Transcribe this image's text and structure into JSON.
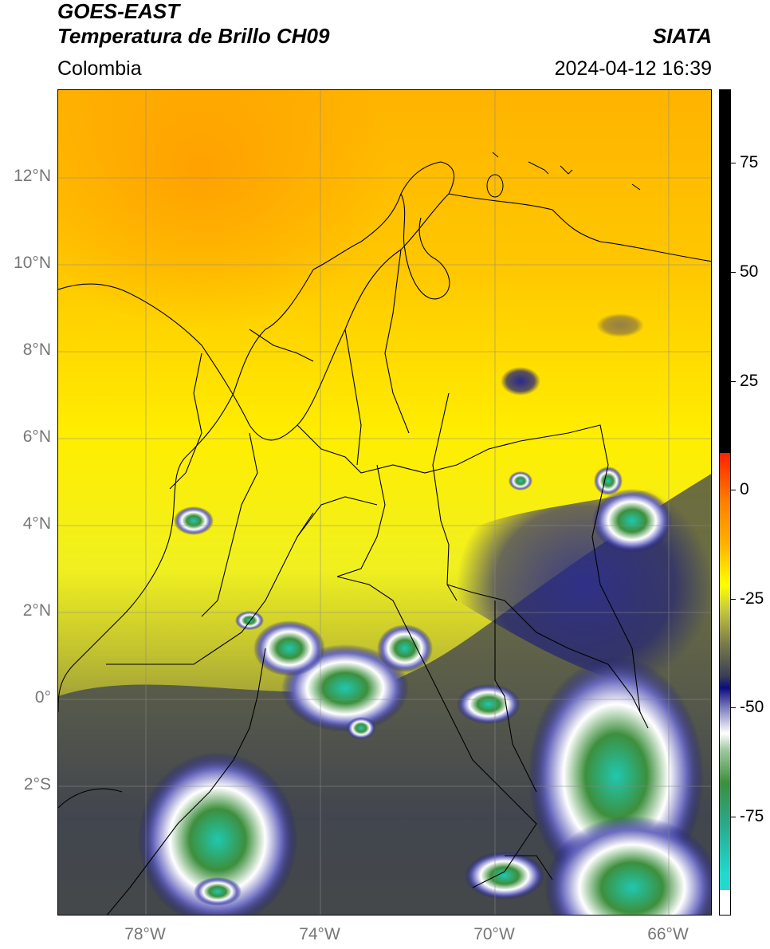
{
  "header": {
    "satellite": "GOES-EAST",
    "product": "Temperatura de Brillo CH09",
    "brand": "SIATA",
    "region": "Colombia",
    "datetime": "2024-04-12 16:39"
  },
  "map": {
    "lat_labels": [
      "12°N",
      "10°N",
      "8°N",
      "6°N",
      "4°N",
      "2°N",
      "0°",
      "2°S"
    ],
    "lon_labels": [
      "78°W",
      "74°W",
      "70°W",
      "66°W"
    ],
    "extent": {
      "lon_min": -80,
      "lon_max": -65,
      "lat_min": -5,
      "lat_max": 14
    }
  },
  "colorbar": {
    "ticks": [
      "75",
      "50",
      "25",
      "0",
      "-25",
      "-50",
      "-75"
    ],
    "colors": {
      "warm": "#000000",
      "hot": "#ff2000",
      "orange": "#ffa500",
      "yellow": "#ffff00",
      "olive": "#8c8c3a",
      "gray": "#3a3f55",
      "navy": "#0c0c80",
      "white": "#ffffff",
      "green": "#3d8f3d",
      "cyan": "#22d8cf"
    }
  }
}
